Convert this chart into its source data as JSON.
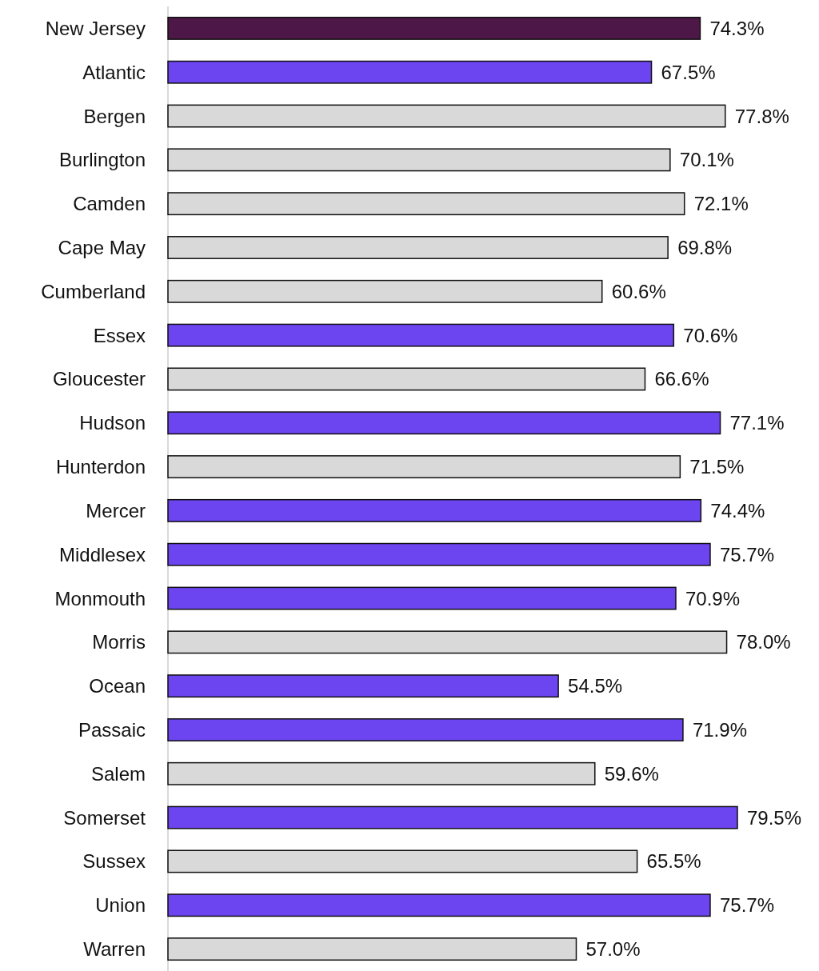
{
  "chart_data": {
    "type": "bar",
    "orientation": "horizontal",
    "tick_labels": "y",
    "categories": [
      "New Jersey",
      "Atlantic",
      "Bergen",
      "Burlington",
      "Camden",
      "Cape May",
      "Cumberland",
      "Essex",
      "Gloucester",
      "Hudson",
      "Hunterdon",
      "Mercer",
      "Middlesex",
      "Monmouth",
      "Morris",
      "Ocean",
      "Passaic",
      "Salem",
      "Somerset",
      "Sussex",
      "Union",
      "Warren"
    ],
    "values": [
      74.3,
      67.5,
      77.8,
      70.1,
      72.1,
      69.8,
      60.6,
      70.6,
      66.6,
      77.1,
      71.5,
      74.4,
      75.7,
      70.9,
      78.0,
      54.5,
      71.9,
      59.6,
      79.5,
      65.5,
      75.7,
      57.0
    ],
    "value_labels": [
      "74.3%",
      "67.5%",
      "77.8%",
      "70.1%",
      "72.1%",
      "69.8%",
      "60.6%",
      "70.6%",
      "66.6%",
      "77.1%",
      "71.5%",
      "74.4%",
      "75.7%",
      "70.9%",
      "78.0%",
      "54.5%",
      "71.9%",
      "59.6%",
      "79.5%",
      "65.5%",
      "75.7%",
      "57.0%"
    ],
    "colors": [
      "#4d1848",
      "#6c44f0",
      "#d9d9d9",
      "#d9d9d9",
      "#d9d9d9",
      "#d9d9d9",
      "#d9d9d9",
      "#6c44f0",
      "#d9d9d9",
      "#6c44f0",
      "#d9d9d9",
      "#6c44f0",
      "#6c44f0",
      "#6c44f0",
      "#d9d9d9",
      "#6c44f0",
      "#6c44f0",
      "#d9d9d9",
      "#6c44f0",
      "#d9d9d9",
      "#6c44f0",
      "#d9d9d9"
    ]
  }
}
